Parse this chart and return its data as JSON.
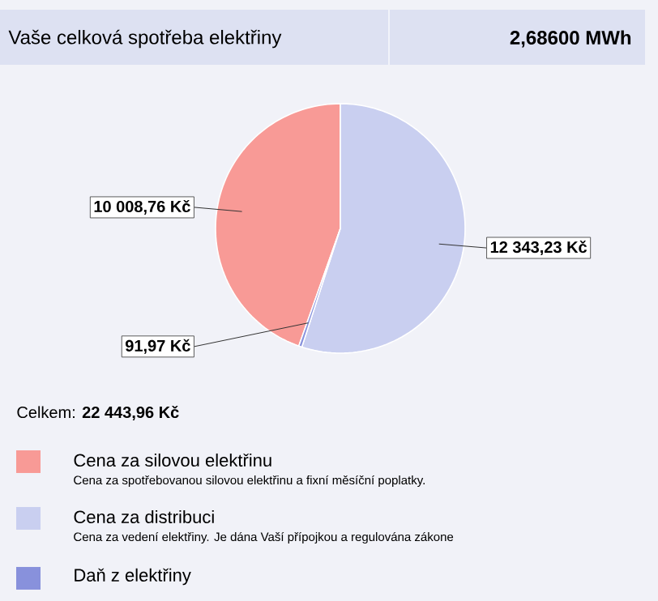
{
  "chart_data": {
    "type": "pie",
    "title": "Vaše celková spotřeba elektřiny",
    "subtitle": "2,68600 MWh",
    "categories": [
      "Cena za silovou elektřinu",
      "Cena za distribuci",
      "Daň z elektřiny"
    ],
    "values": [
      10008.76,
      12343.23,
      91.97
    ],
    "colors": [
      "#f89a96",
      "#c9cff0",
      "#8891dc"
    ],
    "value_labels": [
      "10 008,76 Kč",
      "12 343,23 Kč",
      "91,97 Kč"
    ],
    "annotations": [
      "Celkem: **22 443,96 Kč**",
      "Cena za spotřebovanou silovou elektřinu a fixní měsíční poplatky.",
      "Cena za vedení elektřiny. Je dána Vaší přípojkou a regulována zákone"
    ],
    "legend": "bottom"
  }
}
